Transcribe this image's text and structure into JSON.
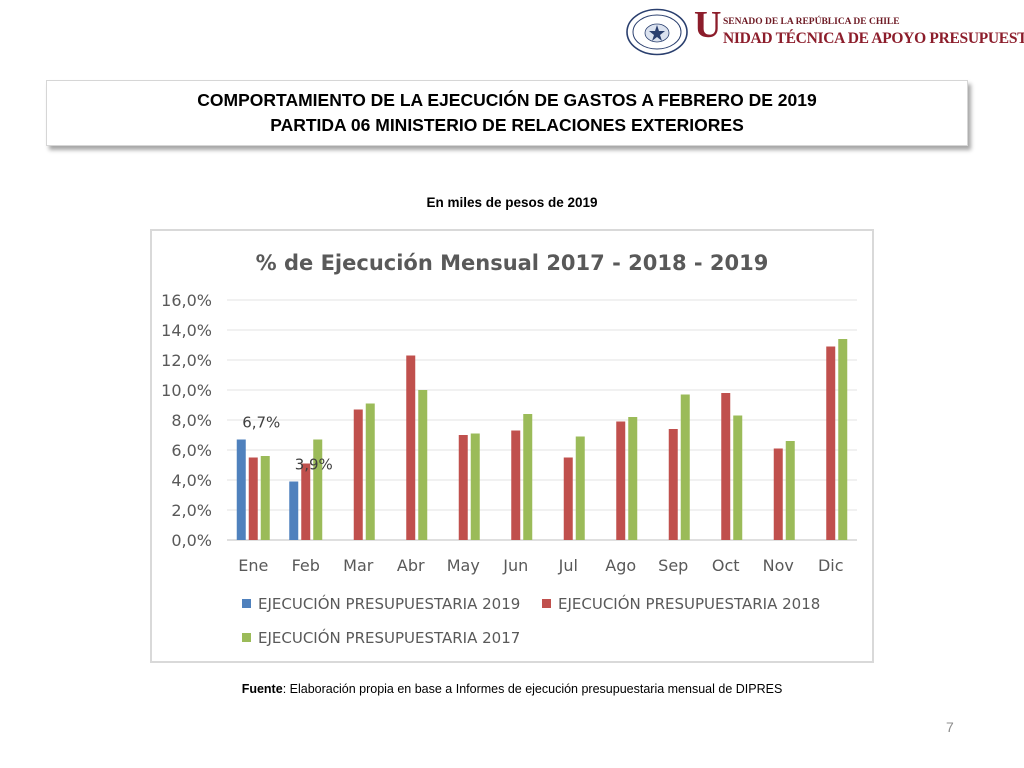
{
  "header": {
    "seal_text_top": "REPÚBLICA DE CHILE",
    "seal_text_bottom": "SENADO",
    "brand_initial": "U",
    "brand_top": "SENADO DE LA REPÚBLICA DE CHILE",
    "brand_main": "NIDAD TÉCNICA DE APOYO PRESUPUESTARIO",
    "brand_color": "#8c1d2b"
  },
  "title": {
    "line1": "COMPORTAMIENTO DE LA EJECUCIÓN DE GASTOS A FEBRERO DE 2019",
    "line2": "PARTIDA 06 MINISTERIO DE RELACIONES EXTERIORES"
  },
  "subtitle": "En miles de pesos de 2019",
  "chart_data": {
    "type": "bar",
    "title": "% de Ejecución Mensual 2017 - 2018 - 2019",
    "categories": [
      "Ene",
      "Feb",
      "Mar",
      "Abr",
      "May",
      "Jun",
      "Jul",
      "Ago",
      "Sep",
      "Oct",
      "Nov",
      "Dic"
    ],
    "series": [
      {
        "name": "EJECUCIÓN PRESUPUESTARIA 2019",
        "color": "#4f81bd",
        "values": [
          6.7,
          3.9,
          null,
          null,
          null,
          null,
          null,
          null,
          null,
          null,
          null,
          null
        ]
      },
      {
        "name": "EJECUCIÓN PRESUPUESTARIA 2018",
        "color": "#c0504d",
        "values": [
          5.5,
          5.1,
          8.7,
          12.3,
          7.0,
          7.3,
          5.5,
          7.9,
          7.4,
          9.8,
          6.1,
          12.9
        ]
      },
      {
        "name": "EJECUCIÓN PRESUPUESTARIA 2017",
        "color": "#9bbb59",
        "values": [
          5.6,
          6.7,
          9.1,
          10.0,
          7.1,
          8.4,
          6.9,
          8.2,
          9.7,
          8.3,
          6.6,
          13.4
        ]
      }
    ],
    "data_labels": [
      {
        "series": 0,
        "category": "Ene",
        "text": "6,7%"
      },
      {
        "series": 0,
        "category": "Feb",
        "text": "3,9%"
      }
    ],
    "ylim": [
      0,
      16
    ],
    "yticks": [
      "0,0%",
      "2,0%",
      "4,0%",
      "6,0%",
      "8,0%",
      "10,0%",
      "12,0%",
      "14,0%",
      "16,0%"
    ],
    "ytick_step": 2,
    "xlabel": "",
    "ylabel": "",
    "grid": true,
    "legend_position": "bottom"
  },
  "source": {
    "label": "Fuente",
    "text": ": Elaboración propia en base  a Informes de ejecución presupuestaria mensual de DIPRES"
  },
  "page_number": "7"
}
